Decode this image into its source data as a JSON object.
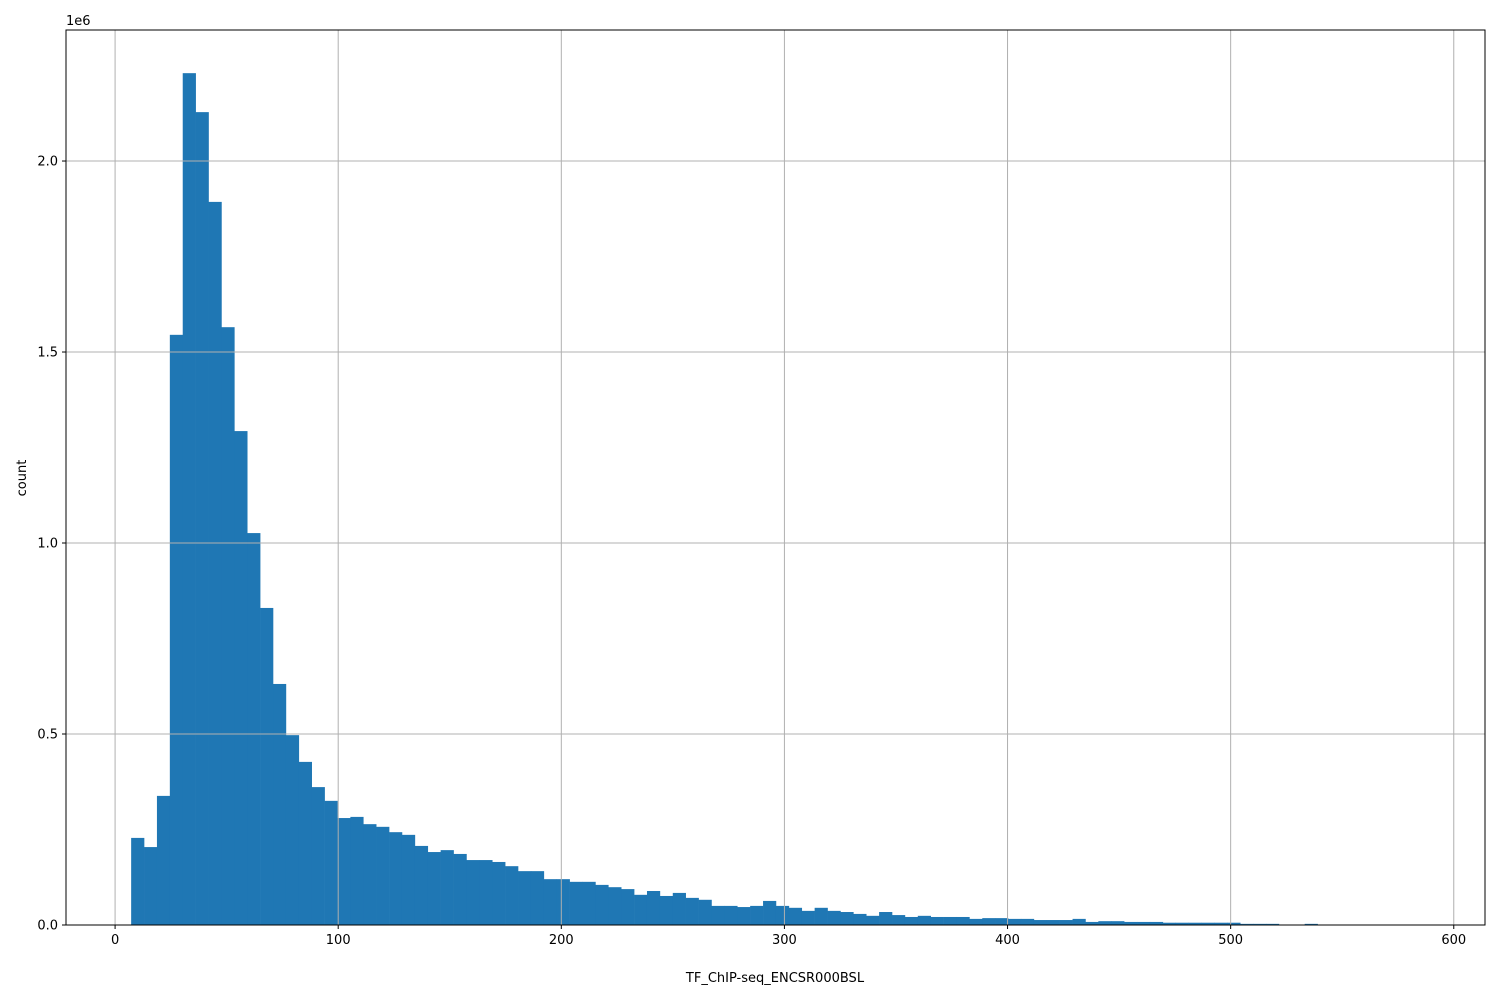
{
  "chart_data": {
    "type": "bar",
    "subtype": "histogram",
    "title": "",
    "xlabel": "TF_ChIP-seq_ENCSR000BSL",
    "ylabel": "count",
    "y_offset_label": "1e6",
    "xlim": [
      -22,
      614
    ],
    "ylim": [
      0,
      2343000
    ],
    "xticks": [
      0,
      100,
      200,
      300,
      400,
      500,
      600
    ],
    "xtick_labels": [
      "0",
      "100",
      "200",
      "300",
      "400",
      "500",
      "600"
    ],
    "yticks": [
      0,
      500000,
      1000000,
      1500000,
      2000000
    ],
    "ytick_labels": [
      "0.0",
      "0.5",
      "1.0",
      "1.5",
      "2.0"
    ],
    "grid": true,
    "bar_color": "#1f77b4",
    "grid_color": "#b0b0b0",
    "bin_start": 7.2,
    "bin_width": 5.78,
    "values": [
      228000,
      204000,
      338000,
      1545000,
      2230000,
      2128000,
      1893000,
      1565000,
      1293000,
      1026000,
      830000,
      631000,
      497000,
      427000,
      361000,
      325000,
      280000,
      283000,
      264000,
      257000,
      243000,
      236000,
      207000,
      191000,
      196000,
      186000,
      170000,
      170000,
      165000,
      154000,
      141000,
      141000,
      120000,
      120000,
      113000,
      113000,
      105000,
      99000,
      94000,
      79000,
      89000,
      76000,
      84000,
      71000,
      66000,
      50000,
      50000,
      47000,
      50000,
      63000,
      50000,
      45000,
      37000,
      45000,
      37000,
      34000,
      29000,
      24000,
      34000,
      26000,
      21000,
      24000,
      21000,
      21000,
      21000,
      16000,
      18000,
      18000,
      16000,
      16000,
      13000,
      13000,
      13000,
      16000,
      8000,
      10000,
      10000,
      8000,
      8000,
      8000,
      6000,
      6000,
      6000,
      6000,
      6000,
      6000,
      3000,
      3000,
      3000,
      1000,
      1000,
      3000,
      1000,
      1000,
      1000,
      500,
      500,
      500,
      300,
      300
    ]
  }
}
